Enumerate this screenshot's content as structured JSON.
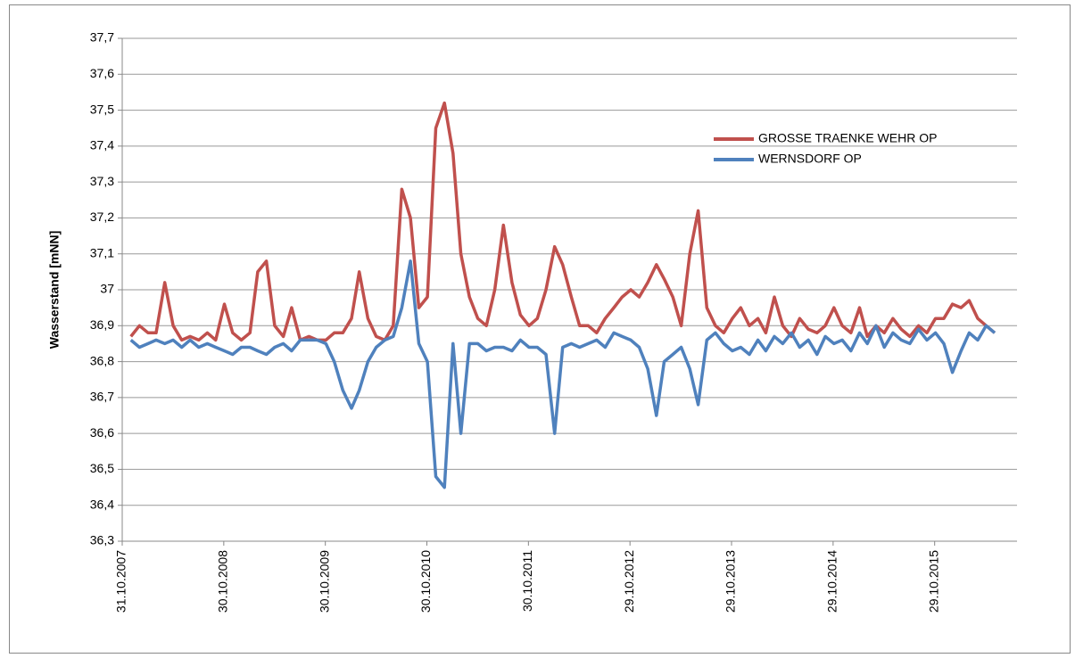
{
  "chart_data": {
    "type": "line",
    "y_label": "Wasserstand [mNN]",
    "x": [
      "01.12.2007",
      "01.01.2008",
      "01.02.2008",
      "01.03.2008",
      "01.04.2008",
      "01.05.2008",
      "01.06.2008",
      "01.07.2008",
      "01.08.2008",
      "01.09.2008",
      "01.10.2008",
      "01.11.2008",
      "01.12.2008",
      "01.01.2009",
      "01.02.2009",
      "01.03.2009",
      "01.04.2009",
      "01.05.2009",
      "01.06.2009",
      "01.07.2009",
      "01.08.2009",
      "01.09.2009",
      "01.10.2009",
      "01.11.2009",
      "01.12.2009",
      "01.01.2010",
      "01.02.2010",
      "01.03.2010",
      "01.04.2010",
      "01.05.2010",
      "01.06.2010",
      "01.07.2010",
      "01.08.2010",
      "01.09.2010",
      "01.10.2010",
      "01.11.2010",
      "01.12.2010",
      "01.01.2011",
      "01.02.2011",
      "01.03.2011",
      "01.04.2011",
      "01.05.2011",
      "01.06.2011",
      "01.07.2011",
      "01.08.2011",
      "01.09.2011",
      "01.10.2011",
      "01.11.2011",
      "01.12.2011",
      "01.01.2012",
      "01.02.2012",
      "01.03.2012",
      "01.04.2012",
      "01.05.2012",
      "01.06.2012",
      "01.07.2012",
      "01.08.2012",
      "01.09.2012",
      "01.10.2012",
      "01.11.2012",
      "01.12.2012",
      "01.01.2013",
      "01.02.2013",
      "01.03.2013",
      "01.04.2013",
      "01.05.2013",
      "01.06.2013",
      "01.07.2013",
      "01.08.2013",
      "01.09.2013",
      "01.10.2013",
      "01.11.2013",
      "01.12.2013",
      "01.01.2014",
      "01.02.2014",
      "01.03.2014",
      "01.04.2014",
      "01.05.2014",
      "01.06.2014",
      "01.07.2014",
      "01.08.2014",
      "01.09.2014",
      "01.10.2014",
      "01.11.2014",
      "01.12.2014",
      "01.01.2015",
      "01.02.2015",
      "01.03.2015",
      "01.04.2015",
      "01.05.2015",
      "01.06.2015",
      "01.07.2015",
      "01.08.2015",
      "01.09.2015",
      "01.10.2015",
      "01.11.2015",
      "01.12.2015",
      "01.01.2016",
      "01.02.2016",
      "01.03.2016",
      "01.04.2016",
      "01.05.2016",
      "01.06.2016"
    ],
    "series": [
      {
        "name": "GROSSE TRAENKE WEHR OP",
        "color": "#c0504d",
        "values": [
          36.87,
          36.9,
          36.88,
          36.88,
          37.02,
          36.9,
          36.86,
          36.87,
          36.86,
          36.88,
          36.86,
          36.96,
          36.88,
          36.86,
          36.88,
          37.05,
          37.08,
          36.9,
          36.87,
          36.95,
          36.86,
          36.87,
          36.86,
          36.86,
          36.88,
          36.88,
          36.92,
          37.05,
          36.92,
          36.87,
          36.86,
          36.9,
          37.28,
          37.2,
          36.95,
          36.98,
          37.45,
          37.52,
          37.38,
          37.1,
          36.98,
          36.92,
          36.9,
          37.0,
          37.18,
          37.02,
          36.93,
          36.9,
          36.92,
          37.0,
          37.12,
          37.07,
          36.98,
          36.9,
          36.9,
          36.88,
          36.92,
          36.95,
          36.98,
          37.0,
          36.98,
          37.02,
          37.07,
          37.03,
          36.98,
          36.9,
          37.1,
          37.22,
          36.95,
          36.9,
          36.88,
          36.92,
          36.95,
          36.9,
          36.92,
          36.88,
          36.98,
          36.9,
          36.87,
          36.92,
          36.89,
          36.88,
          36.9,
          36.95,
          36.9,
          36.88,
          36.95,
          36.87,
          36.9,
          36.88,
          36.92,
          36.89,
          36.87,
          36.9,
          36.88,
          36.92,
          36.92,
          36.96,
          36.95,
          36.97,
          36.92,
          36.9,
          36.88
        ]
      },
      {
        "name": "WERNSDORF OP",
        "color": "#4f81bd",
        "values": [
          36.86,
          36.84,
          36.85,
          36.86,
          36.85,
          36.86,
          36.84,
          36.86,
          36.84,
          36.85,
          36.84,
          36.83,
          36.82,
          36.84,
          36.84,
          36.83,
          36.82,
          36.84,
          36.85,
          36.83,
          36.86,
          36.86,
          36.86,
          36.85,
          36.8,
          36.72,
          36.67,
          36.72,
          36.8,
          36.84,
          36.86,
          36.87,
          36.95,
          37.08,
          36.85,
          36.8,
          36.48,
          36.45,
          36.85,
          36.6,
          36.85,
          36.85,
          36.83,
          36.84,
          36.84,
          36.83,
          36.86,
          36.84,
          36.84,
          36.82,
          36.6,
          36.84,
          36.85,
          36.84,
          36.85,
          36.86,
          36.84,
          36.88,
          36.87,
          36.86,
          36.84,
          36.78,
          36.65,
          36.8,
          36.82,
          36.84,
          36.78,
          36.68,
          36.86,
          36.88,
          36.85,
          36.83,
          36.84,
          36.82,
          36.86,
          36.83,
          36.87,
          36.85,
          36.88,
          36.84,
          36.86,
          36.82,
          36.87,
          36.85,
          36.86,
          36.83,
          36.88,
          36.85,
          36.9,
          36.84,
          36.88,
          36.86,
          36.85,
          36.89,
          36.86,
          36.88,
          36.85,
          36.77,
          36.83,
          36.88,
          36.86,
          36.9,
          36.88
        ]
      }
    ],
    "xlim": [
      "31.10.2007",
      "20.08.2016"
    ],
    "xticks": [
      "31.10.2007",
      "30.10.2008",
      "30.10.2009",
      "30.10.2010",
      "30.10.2011",
      "29.10.2012",
      "29.10.2013",
      "29.10.2014",
      "29.10.2015"
    ],
    "ylim": [
      36.3,
      37.7
    ],
    "yticks": [
      {
        "value": 36.3,
        "label": "36,3"
      },
      {
        "value": 36.4,
        "label": "36,4"
      },
      {
        "value": 36.5,
        "label": "36,5"
      },
      {
        "value": 36.6,
        "label": "36,6"
      },
      {
        "value": 36.7,
        "label": "36,7"
      },
      {
        "value": 36.8,
        "label": "36,8"
      },
      {
        "value": 36.9,
        "label": "36,9"
      },
      37,
      {
        "value": 37.1,
        "label": "37,1"
      },
      {
        "value": 37.2,
        "label": "37,2"
      },
      {
        "value": 37.3,
        "label": "37,3"
      },
      {
        "value": 37.4,
        "label": "37,4"
      },
      {
        "value": 37.5,
        "label": "37,5"
      },
      {
        "value": 37.6,
        "label": "37,6"
      },
      {
        "value": 37.7,
        "label": "37,7"
      }
    ],
    "grid": true,
    "legend": "top-right"
  }
}
